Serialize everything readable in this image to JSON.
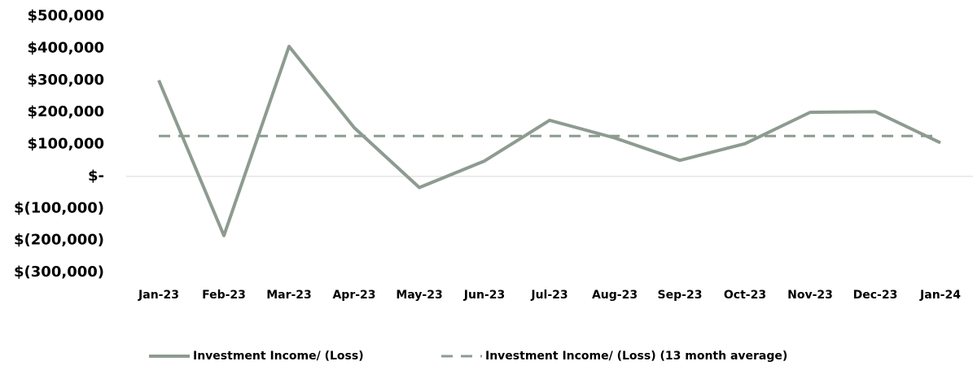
{
  "chart_data": {
    "type": "line",
    "categories": [
      "Jan-23",
      "Feb-23",
      "Mar-23",
      "Apr-23",
      "May-23",
      "Jun-23",
      "Jul-23",
      "Aug-23",
      "Sep-23",
      "Oct-23",
      "Nov-23",
      "Dec-23",
      "Jan-24"
    ],
    "series": [
      {
        "name": "Investment Income/ (Loss)",
        "color": "#8e9b90",
        "dash": false,
        "values": [
          300000,
          -185000,
          406000,
          152000,
          -35000,
          48000,
          175000,
          120000,
          50000,
          102000,
          200000,
          202000,
          105000
        ]
      },
      {
        "name": "Investment Income/ (Loss) (13 month average)",
        "color": "#8e9b90",
        "dash": true,
        "values": [
          126000,
          126000,
          126000,
          126000,
          126000,
          126000,
          126000,
          126000,
          126000,
          126000,
          126000,
          126000,
          126000
        ]
      }
    ],
    "ylim": [
      -300000,
      500000
    ],
    "yticks": [
      {
        "value": 500000,
        "label": "$500,000"
      },
      {
        "value": 400000,
        "label": "$400,000"
      },
      {
        "value": 300000,
        "label": "$300,000"
      },
      {
        "value": 200000,
        "label": "$200,000"
      },
      {
        "value": 100000,
        "label": "$100,000"
      },
      {
        "value": 0,
        "label": "$-"
      },
      {
        "value": -100000,
        "label": "$(100,000)"
      },
      {
        "value": -200000,
        "label": "$(200,000)"
      },
      {
        "value": -300000,
        "label": "$(300,000)"
      }
    ],
    "grid": false,
    "legend": "bottom"
  }
}
